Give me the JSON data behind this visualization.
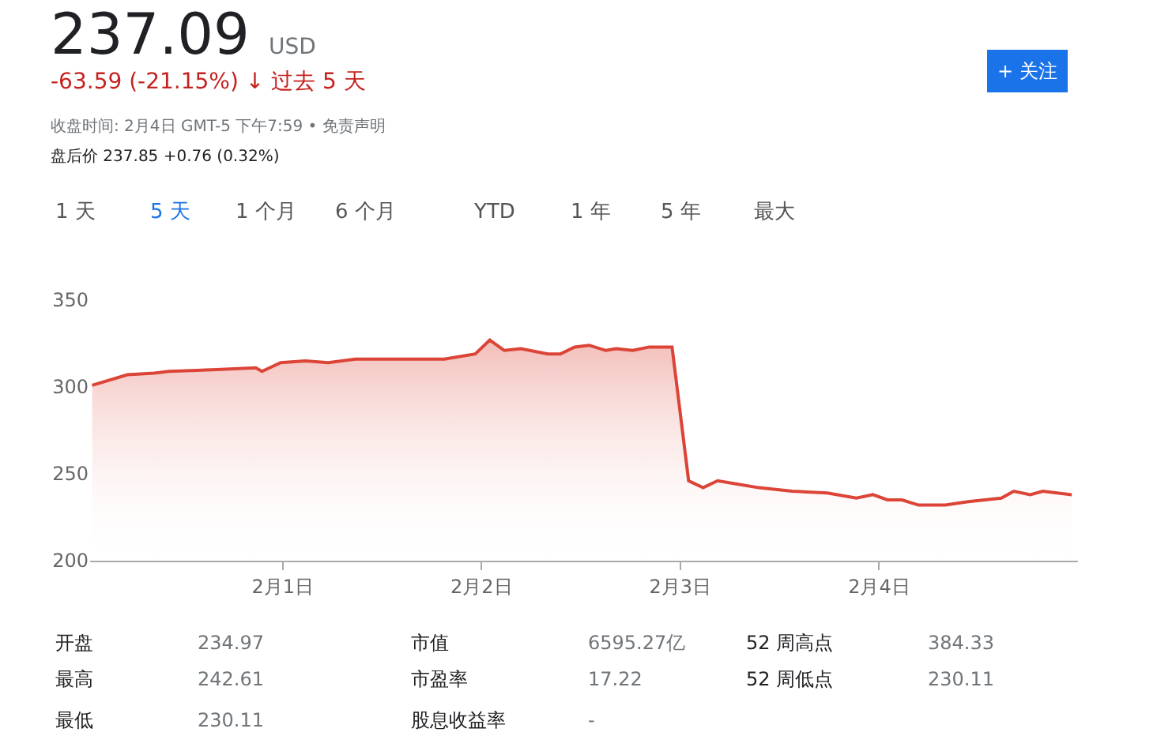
{
  "chart_data": {
    "type": "area",
    "title": "237.09",
    "annotations": [
      "USD",
      "-63.59 (-21.15%) ↓ 过去 5 天",
      "收盘时间: 2月4日 GMT-5 下午7:59 • 免责声明",
      "盘后价 237.85 +0.76 (0.32%)",
      "1 天",
      "5 天",
      "1 个月",
      "6 个月",
      "YTD",
      "1 年",
      "5 年",
      "最大",
      "+ 关注",
      "开盘",
      "234.97",
      "市值",
      "6595.27亿",
      "52 周高点",
      "384.33",
      "最高",
      "242.61",
      "市盈率",
      "17.22",
      "52 周低点",
      "230.11",
      "最低",
      "230.11",
      "股息收益率",
      "-"
    ],
    "x": [
      "--01-31T01:00",
      "--01-31T05:15",
      "--01-31T08:30",
      "--01-31T10:15",
      "--01-31T16:00",
      "--01-31T20:45",
      "--01-31T21:30",
      "--01-31T23:45",
      "--02-01T02:45",
      "--02-01T05:30",
      "--02-01T08:45",
      "--02-01T13:15",
      "--02-01T15:30",
      "--02-01T19:30",
      "--02-01T23:15",
      "--02-02T01:00",
      "--02-02T02:45",
      "--02-02T04:45",
      "--02-02T08:00",
      "--02-02T09:30",
      "--02-02T11:15",
      "--02-02T13:00",
      "--02-02T15:00",
      "--02-02T16:15",
      "--02-02T18:15",
      "--02-02T20:15",
      "--02-02T23:00",
      "--02-03T01:00",
      "--02-03T02:45",
      "--02-03T04:30",
      "--02-03T07:00",
      "--02-03T09:30",
      "--02-03T11:30",
      "--02-03T13:30",
      "--02-03T17:45",
      "--02-03T21:15",
      "--02-03T23:15",
      "--02-04T01:00",
      "--02-04T02:45",
      "--02-04T04:45",
      "--02-04T08:00",
      "--02-04T10:45",
      "--02-04T14:45",
      "--02-04T16:15",
      "--02-04T18:15",
      "--02-04T19:45",
      "--02-04T23:15"
    ],
    "series": [
      {
        "color": "#db4437",
        "values": [
          301,
          307,
          308,
          309,
          310,
          311,
          309,
          314,
          315,
          314,
          316,
          316,
          316,
          316,
          319,
          327,
          321,
          322,
          319,
          319,
          323,
          324,
          321,
          322,
          321,
          323,
          323,
          246,
          242,
          246,
          244,
          242,
          241,
          240,
          239,
          236,
          238,
          235,
          235,
          232,
          232,
          234,
          236,
          240,
          238,
          240,
          238
        ]
      }
    ],
    "xlim": [
      "--01-31T00:45",
      "--02-05T00:00"
    ],
    "xticks": [
      {
        "value": "--02-01",
        "label": "2月1日"
      },
      {
        "value": "--02-02",
        "label": "2月2日"
      },
      {
        "value": "--02-03",
        "label": "2月3日"
      },
      {
        "value": "--02-04",
        "label": "2月4日"
      }
    ],
    "ylim": [
      200,
      350
    ],
    "yticks": [
      200,
      250,
      300,
      350
    ]
  }
}
